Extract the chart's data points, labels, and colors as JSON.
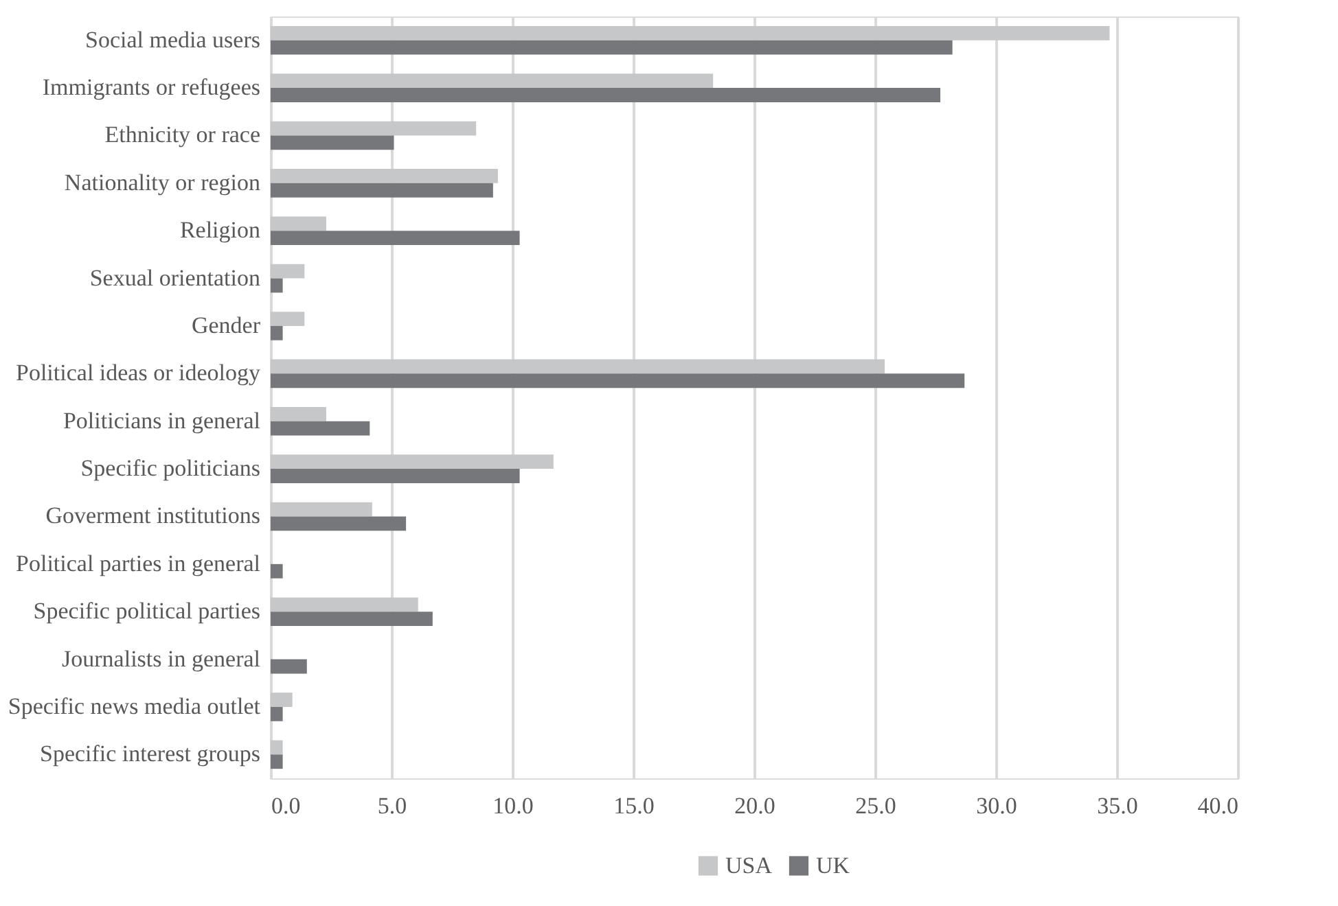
{
  "chart_data": {
    "type": "bar",
    "orientation": "horizontal",
    "categories": [
      "Social media users",
      "Immigrants or refugees",
      "Ethnicity or race",
      "Nationality or region",
      "Religion",
      "Sexual orientation",
      "Gender",
      "Political ideas or ideology",
      "Politicians in general",
      "Specific politicians",
      "Goverment institutions",
      "Political parties in general",
      "Specific political parties",
      "Journalists in general",
      "Specific news media outlet",
      "Specific interest groups"
    ],
    "series": [
      {
        "name": "USA",
        "color": "#c6c7c9",
        "values": [
          34.7,
          18.3,
          8.5,
          9.4,
          2.3,
          1.4,
          1.4,
          25.4,
          2.3,
          11.7,
          4.2,
          0,
          6.1,
          0,
          0.9,
          0.5
        ]
      },
      {
        "name": "UK",
        "color": "#76777b",
        "values": [
          28.2,
          27.7,
          5.1,
          9.2,
          10.3,
          0.5,
          0.5,
          28.7,
          4.1,
          10.3,
          5.6,
          0.5,
          6.7,
          1.5,
          0.5,
          0.5
        ]
      }
    ],
    "xlim": [
      0,
      40
    ],
    "xticks": [
      {
        "value": 0,
        "label": "0.0"
      },
      {
        "value": 5,
        "label": "5.0"
      },
      {
        "value": 10,
        "label": "10.0"
      },
      {
        "value": 15,
        "label": "15.0"
      },
      {
        "value": 20,
        "label": "20.0"
      },
      {
        "value": 25,
        "label": "25.0"
      },
      {
        "value": 30,
        "label": "30.0"
      },
      {
        "value": 35,
        "label": "35.0"
      },
      {
        "value": 40,
        "label": "40.0"
      }
    ],
    "grid": "x",
    "legend": "bottom"
  }
}
